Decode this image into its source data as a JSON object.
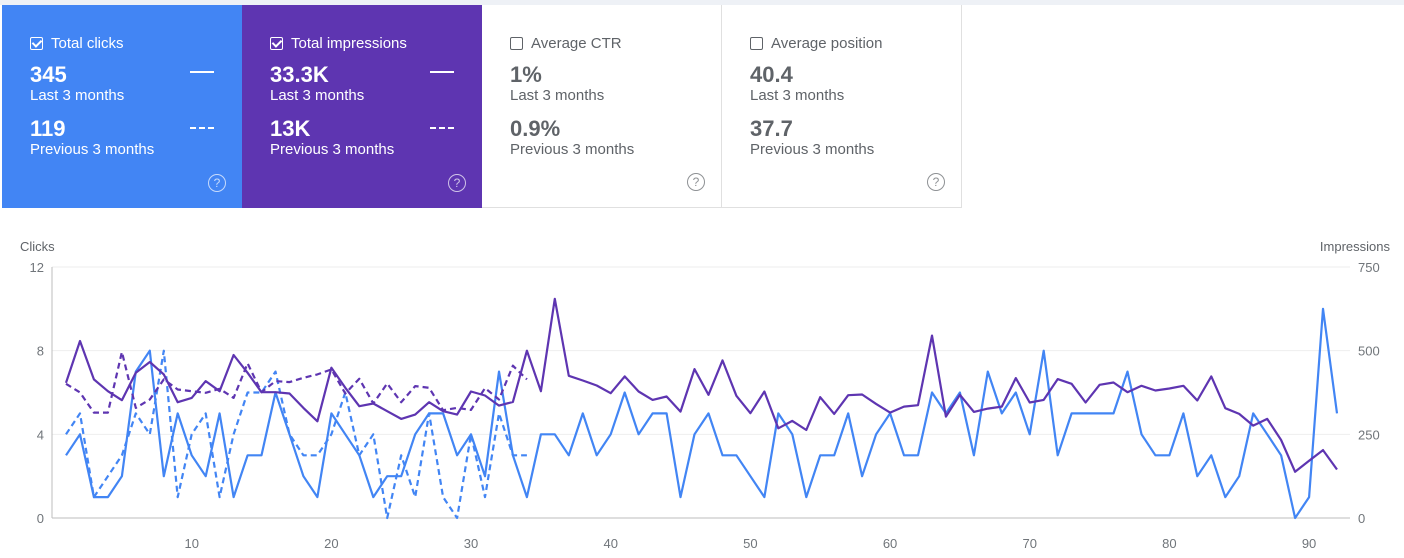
{
  "cards": [
    {
      "title": "Total clicks",
      "checked": true,
      "value": "345",
      "value_label": "Last 3 months",
      "prev": "119",
      "prev_label": "Previous 3 months",
      "color": "#4285f4"
    },
    {
      "title": "Total impressions",
      "checked": true,
      "value": "33.3K",
      "value_label": "Last 3 months",
      "prev": "13K",
      "prev_label": "Previous 3 months",
      "color": "#5e35b1"
    },
    {
      "title": "Average CTR",
      "checked": false,
      "value": "1%",
      "value_label": "Last 3 months",
      "prev": "0.9%",
      "prev_label": "Previous 3 months"
    },
    {
      "title": "Average position",
      "checked": false,
      "value": "40.4",
      "value_label": "Last 3 months",
      "prev": "37.7",
      "prev_label": "Previous 3 months"
    }
  ],
  "help_icon": "?",
  "chart_data": {
    "type": "line",
    "ylabel": "Clicks",
    "y2label": "Impressions",
    "ylim": [
      0,
      12
    ],
    "y2lim": [
      0,
      750
    ],
    "yticks": [
      "0",
      "4",
      "8",
      "12"
    ],
    "y2ticks": [
      "0",
      "250",
      "500",
      "750"
    ],
    "xlim": [
      1,
      92
    ],
    "xticks": [
      "10",
      "20",
      "30",
      "40",
      "50",
      "60",
      "70",
      "80",
      "90"
    ],
    "grid": true,
    "series": [
      {
        "metric": "clicks",
        "period": "current",
        "style": "solid",
        "axis": "left",
        "color": "#4285f4",
        "values": [
          3,
          4,
          1,
          1,
          2,
          7,
          8,
          2,
          5,
          3,
          2,
          5,
          1,
          3,
          3,
          6,
          4,
          2,
          1,
          5,
          4,
          3,
          1,
          2,
          2,
          4,
          5,
          5,
          3,
          4,
          2,
          7,
          3,
          1,
          4,
          4,
          3,
          5,
          3,
          4,
          6,
          4,
          5,
          5,
          1,
          4,
          5,
          3,
          3,
          2,
          1,
          5,
          4,
          1,
          3,
          3,
          5,
          2,
          4,
          5,
          3,
          3,
          6,
          5,
          6,
          3,
          7,
          5,
          6,
          4,
          8,
          3,
          5,
          5,
          5,
          5,
          7,
          4,
          3,
          3,
          5,
          2,
          3,
          1,
          2,
          5,
          4,
          3,
          0,
          1,
          10,
          5
        ]
      },
      {
        "metric": "clicks",
        "period": "previous",
        "style": "dashed",
        "axis": "left",
        "color": "#4285f4",
        "values": [
          4,
          5,
          1,
          2,
          3,
          5,
          4,
          8,
          1,
          4,
          5,
          1,
          4,
          6,
          6,
          7,
          4,
          3,
          3,
          4,
          6,
          3,
          4,
          0,
          3,
          1,
          5,
          1,
          0,
          4,
          1,
          5,
          3,
          3
        ]
      },
      {
        "metric": "impressions",
        "period": "current",
        "style": "solid",
        "axis": "right",
        "color": "#5e35b1",
        "values": [
          404,
          529,
          414,
          379,
          352,
          434,
          466,
          429,
          346,
          359,
          409,
          379,
          487,
          434,
          376,
          376,
          372,
          329,
          289,
          449,
          389,
          334,
          342,
          319,
          296,
          309,
          346,
          319,
          309,
          378,
          366,
          336,
          347,
          500,
          379,
          655,
          425,
          411,
          396,
          373,
          423,
          378,
          353,
          363,
          318,
          445,
          368,
          471,
          365,
          313,
          378,
          268,
          290,
          263,
          361,
          311,
          367,
          369,
          341,
          315,
          333,
          337,
          545,
          303,
          368,
          317,
          327,
          333,
          418,
          345,
          353,
          415,
          401,
          345,
          398,
          405,
          376,
          395,
          381,
          387,
          395,
          351,
          423,
          328,
          311,
          276,
          296,
          233,
          138,
          171,
          203,
          145
        ]
      },
      {
        "metric": "impressions",
        "period": "previous",
        "style": "dashed",
        "axis": "right",
        "color": "#5e35b1",
        "values": [
          401,
          375,
          315,
          315,
          496,
          329,
          354,
          414,
          384,
          379,
          374,
          386,
          359,
          462,
          376,
          409,
          406,
          419,
          429,
          444,
          372,
          416,
          342,
          402,
          346,
          394,
          389,
          322,
          329,
          323,
          388,
          354,
          455,
          414
        ]
      }
    ]
  }
}
